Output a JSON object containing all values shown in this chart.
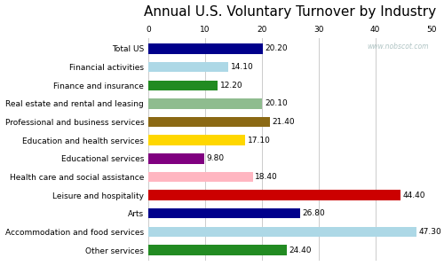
{
  "title": "Annual U.S. Voluntary Turnover by Industry",
  "watermark": "www.nobscot.com",
  "categories": [
    "Total US",
    "Financial activities",
    "Finance and insurance",
    "Real estate and rental and leasing",
    "Professional and business services",
    "Education and health services",
    "Educational services",
    "Health care and social assistance",
    "Leisure and hospitality",
    "Arts",
    "Accommodation and food services",
    "Other services"
  ],
  "values": [
    20.2,
    14.1,
    12.2,
    20.1,
    21.4,
    17.1,
    9.8,
    18.4,
    44.4,
    26.8,
    47.3,
    24.4
  ],
  "colors": [
    "#00008B",
    "#ADD8E6",
    "#228B22",
    "#8FBC8F",
    "#8B6914",
    "#FFD700",
    "#800080",
    "#FFB6C1",
    "#CC0000",
    "#00008B",
    "#ADD8E6",
    "#228B22"
  ],
  "xlim": [
    0,
    50
  ],
  "xticks": [
    0,
    10,
    20,
    30,
    40,
    50
  ],
  "value_fontsize": 6.5,
  "label_fontsize": 6.5,
  "title_fontsize": 11,
  "bar_height": 0.55,
  "background_color": "#ffffff",
  "watermark_color": "#b0c4c4"
}
